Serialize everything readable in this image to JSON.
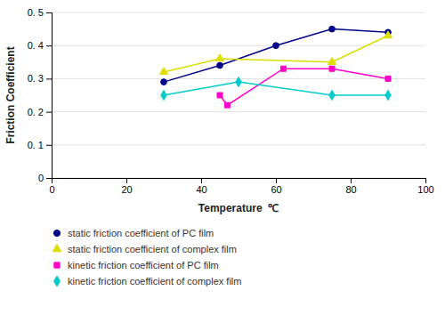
{
  "chart_data": {
    "type": "line",
    "xlabel": "Temperature  ℃",
    "ylabel": "Friction Coefficient",
    "xlim": [
      0,
      100
    ],
    "ylim": [
      0,
      0.5
    ],
    "xticks": [
      0,
      20,
      40,
      60,
      80,
      100
    ],
    "yticks": [
      0,
      {
        "value": 0.1,
        "label": "0. 1"
      },
      {
        "value": 0.2,
        "label": "0. 2"
      },
      {
        "value": 0.3,
        "label": "0. 3"
      },
      {
        "value": 0.4,
        "label": "0. 4"
      },
      {
        "value": 0.5,
        "label": "0. 5"
      }
    ],
    "grid": true,
    "legend": "bottom",
    "series": [
      {
        "name": "static friction coefficient of PC film",
        "color": "#00008B",
        "marker": "circle",
        "x": [
          30,
          45,
          60,
          75,
          90
        ],
        "values": [
          0.29,
          0.34,
          0.4,
          0.45,
          0.44
        ]
      },
      {
        "name": "static friction coefficient of complex film",
        "color": "#DDDD00",
        "marker": "triangle",
        "x": [
          30,
          45,
          75,
          90
        ],
        "values": [
          0.32,
          0.36,
          0.35,
          0.43
        ]
      },
      {
        "name": "kinetic friction coefficient of PC film",
        "color": "#FF00CC",
        "marker": "square",
        "x": [
          45,
          47,
          62,
          75,
          90
        ],
        "values": [
          0.25,
          0.22,
          0.33,
          0.33,
          0.3
        ]
      },
      {
        "name": "kinetic friction coefficient of complex film",
        "color": "#00CCCC",
        "marker": "diamond",
        "x": [
          30,
          50,
          75,
          90
        ],
        "values": [
          0.25,
          0.29,
          0.25,
          0.25
        ]
      }
    ]
  }
}
